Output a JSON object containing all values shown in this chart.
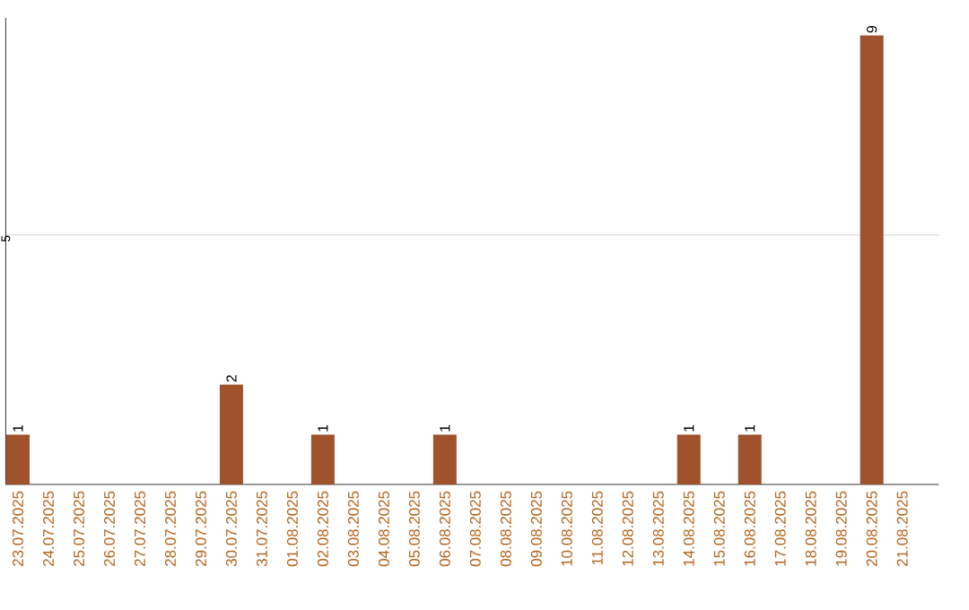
{
  "chart_data": {
    "type": "bar",
    "categories": [
      "23.07.2025",
      "24.07.2025",
      "25.07.2025",
      "26.07.2025",
      "27.07.2025",
      "28.07.2025",
      "29.07.2025",
      "30.07.2025",
      "31.07.2025",
      "01.08.2025",
      "02.08.2025",
      "03.08.2025",
      "04.08.2025",
      "05.08.2025",
      "06.08.2025",
      "07.08.2025",
      "08.08.2025",
      "09.08.2025",
      "10.08.2025",
      "11.08.2025",
      "12.08.2025",
      "13.08.2025",
      "14.08.2025",
      "15.08.2025",
      "16.08.2025",
      "17.08.2025",
      "18.08.2025",
      "19.08.2025",
      "20.08.2025",
      "21.08.2025"
    ],
    "values": [
      1,
      0,
      0,
      0,
      0,
      0,
      0,
      2,
      0,
      0,
      1,
      0,
      0,
      0,
      1,
      0,
      0,
      0,
      0,
      0,
      0,
      0,
      1,
      0,
      1,
      0,
      0,
      0,
      9,
      0
    ],
    "value_labels": [
      "1",
      null,
      null,
      null,
      null,
      null,
      null,
      "2",
      null,
      null,
      "1",
      null,
      null,
      null,
      "1",
      null,
      null,
      null,
      null,
      null,
      null,
      null,
      "1",
      null,
      "1",
      null,
      null,
      null,
      "9",
      null
    ],
    "color": "#a0522d",
    "ylim": [
      0,
      9.35
    ],
    "yticks": [
      5
    ],
    "grid": "y"
  }
}
